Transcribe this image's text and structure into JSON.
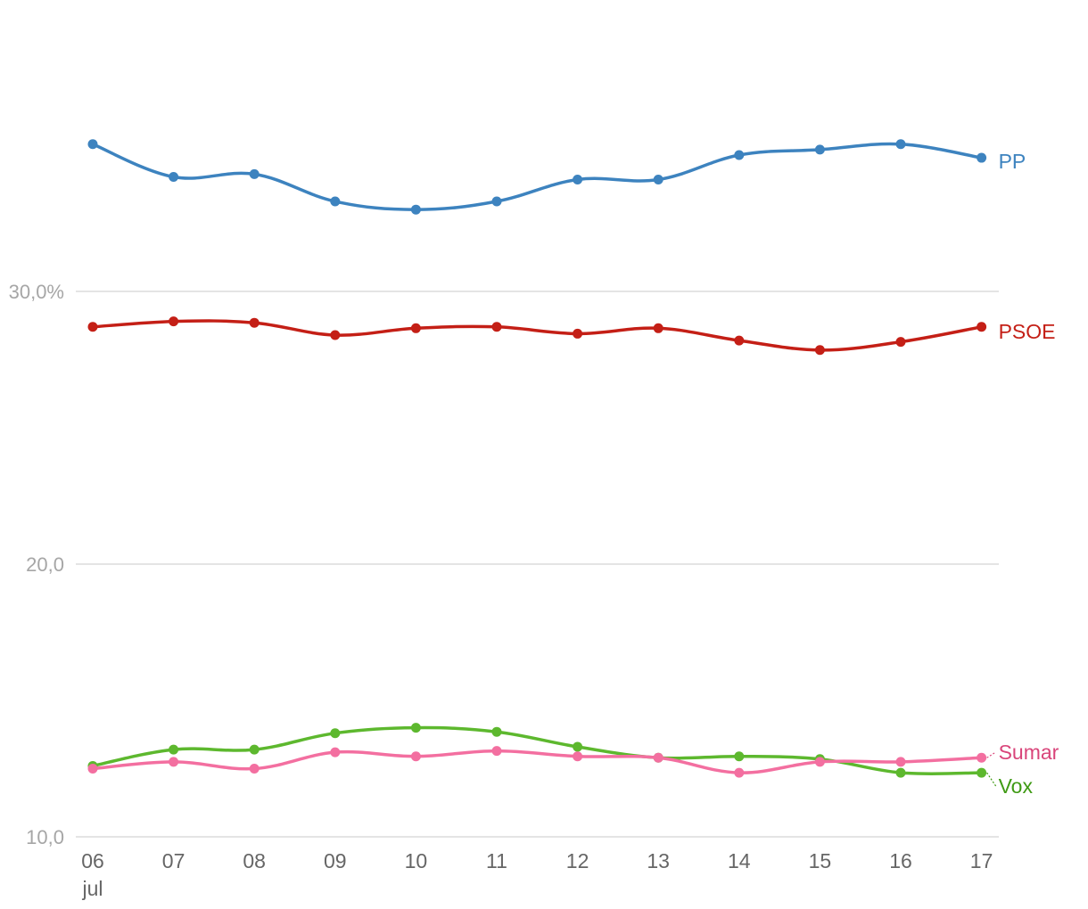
{
  "chart_data": {
    "type": "line",
    "title": "",
    "xlabel": "",
    "ylabel": "",
    "categories": [
      "06",
      "07",
      "08",
      "09",
      "10",
      "11",
      "12",
      "13",
      "14",
      "15",
      "16",
      "17"
    ],
    "category_sublabel": "jul",
    "ylim": [
      10,
      40
    ],
    "yticks": [
      {
        "value": 10,
        "label": "10,0"
      },
      {
        "value": 20,
        "label": "20,0"
      },
      {
        "value": 30,
        "label": "30,0%"
      }
    ],
    "grid": true,
    "series": [
      {
        "name": "PP",
        "color": "#3d83bf",
        "values": [
          35.4,
          34.2,
          34.3,
          33.3,
          33.0,
          33.3,
          34.1,
          34.1,
          35.0,
          35.2,
          35.4,
          34.9
        ]
      },
      {
        "name": "PSOE",
        "color": "#c41f16",
        "values": [
          28.7,
          28.9,
          28.85,
          28.4,
          28.65,
          28.7,
          28.45,
          28.65,
          28.2,
          27.85,
          28.15,
          28.7
        ]
      },
      {
        "name": "Vox",
        "color": "#5db82e",
        "values": [
          12.6,
          13.2,
          13.2,
          13.8,
          14.0,
          13.85,
          13.3,
          12.9,
          12.95,
          12.85,
          12.35,
          12.35
        ]
      },
      {
        "name": "Sumar",
        "color": "#f36fa0",
        "values": [
          12.5,
          12.75,
          12.5,
          13.1,
          12.95,
          13.15,
          12.95,
          12.9,
          12.35,
          12.75,
          12.75,
          12.9
        ]
      }
    ]
  },
  "labels": {
    "PP": {
      "text": "PP",
      "color": "#3d83bf"
    },
    "PSOE": {
      "text": "PSOE",
      "color": "#c41f16"
    },
    "Sumar": {
      "text": "Sumar",
      "color": "#d9457a"
    },
    "Vox": {
      "text": "Vox",
      "color": "#3f9a14"
    }
  }
}
